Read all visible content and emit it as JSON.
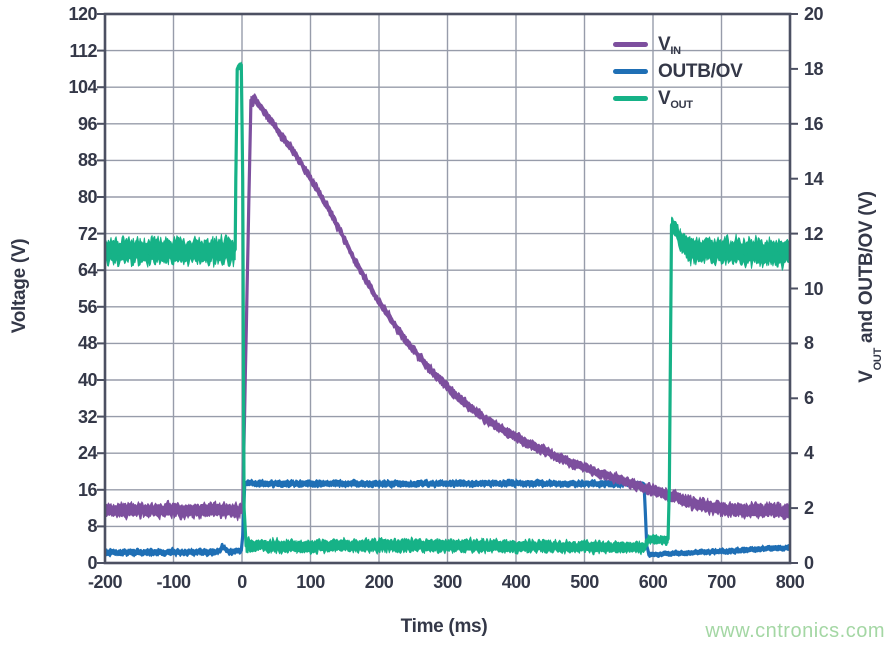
{
  "watermark": {
    "text": "www.cntronics.com",
    "color": "#a4d7a4"
  },
  "chart_data": {
    "type": "line",
    "title": "",
    "xlabel": "Time (ms)",
    "ylabel_left": "Voltage (V)",
    "ylabel_right_parts": {
      "main": "V",
      "sub": "OUT",
      "rest": " and OUTB/OV (V)"
    },
    "x_axis": {
      "min": -200,
      "max": 800,
      "tick_step": 100,
      "ticks": [
        -200,
        -100,
        0,
        100,
        200,
        300,
        400,
        500,
        600,
        700,
        800
      ]
    },
    "y_left": {
      "min": 0,
      "max": 120,
      "tick_step": 8,
      "ticks": [
        0,
        8,
        16,
        24,
        32,
        40,
        48,
        56,
        64,
        72,
        80,
        88,
        96,
        104,
        112,
        120
      ]
    },
    "y_right": {
      "min": 0,
      "max": 20,
      "tick_step": 2,
      "ticks": [
        0,
        2,
        4,
        6,
        8,
        10,
        12,
        14,
        16,
        18,
        20
      ]
    },
    "grid": {
      "on": true,
      "color": "#979caa",
      "border_color": "#4c5062"
    },
    "legend_position": "top-right-inside",
    "legend": [
      {
        "id": "v-in",
        "label_main": "V",
        "label_sub": "IN",
        "color": "#7d4f9e"
      },
      {
        "id": "outb-ov",
        "label_main": "OUTB/OV",
        "label_sub": "",
        "color": "#1f6fb5"
      },
      {
        "id": "v-out",
        "label_main": "V",
        "label_sub": "OUT",
        "color": "#16b287"
      }
    ],
    "series": [
      {
        "id": "OUTB_OV",
        "name": "OUTB/OV",
        "axis": "right",
        "color": "#1f6fb5",
        "points_tvn": [
          [
            -200,
            0.38,
            0.17
          ],
          [
            -35,
            0.4,
            0.17
          ],
          [
            -28,
            0.58,
            0.17
          ],
          [
            -20,
            0.42,
            0.15
          ],
          [
            -1,
            0.45,
            0.15
          ],
          [
            1,
            1.0,
            0.2
          ],
          [
            4,
            2.9,
            0.16
          ],
          [
            200,
            2.88,
            0.16
          ],
          [
            400,
            2.9,
            0.16
          ],
          [
            587,
            2.88,
            0.16
          ],
          [
            591,
            0.6,
            0.14
          ],
          [
            594,
            0.3,
            0.12
          ],
          [
            640,
            0.36,
            0.12
          ],
          [
            700,
            0.42,
            0.13
          ],
          [
            760,
            0.52,
            0.14
          ],
          [
            800,
            0.55,
            0.14
          ]
        ]
      },
      {
        "id": "V_IN",
        "name": "V_IN",
        "axis": "left",
        "color": "#7d4f9e",
        "points_tvn": [
          [
            -200,
            11.5,
            2.0
          ],
          [
            -3,
            11.5,
            2.0
          ],
          [
            1,
            12,
            1.2
          ],
          [
            13,
            101,
            1.4
          ],
          [
            18,
            101.5,
            1.4
          ],
          [
            40,
            97,
            1.4
          ],
          [
            75,
            90,
            1.4
          ],
          [
            105,
            83,
            1.4
          ],
          [
            135,
            75,
            1.4
          ],
          [
            165,
            66,
            1.4
          ],
          [
            200,
            57,
            1.4
          ],
          [
            240,
            48.5,
            1.4
          ],
          [
            280,
            41.5,
            1.4
          ],
          [
            320,
            35.5,
            1.4
          ],
          [
            360,
            31,
            1.4
          ],
          [
            400,
            27.5,
            1.4
          ],
          [
            440,
            24.5,
            1.4
          ],
          [
            480,
            22,
            1.4
          ],
          [
            520,
            19.8,
            1.4
          ],
          [
            560,
            17.8,
            1.4
          ],
          [
            590,
            16.3,
            1.5
          ],
          [
            620,
            15,
            1.6
          ],
          [
            650,
            13.5,
            1.8
          ],
          [
            680,
            12.3,
            1.9
          ],
          [
            710,
            11.7,
            2.0
          ],
          [
            800,
            11.4,
            2.0
          ]
        ]
      },
      {
        "id": "V_OUT",
        "name": "V_OUT",
        "axis": "right",
        "color": "#16b287",
        "points_tvn": [
          [
            -200,
            11.35,
            0.6
          ],
          [
            -10,
            11.35,
            0.6
          ],
          [
            -9,
            14,
            0.3
          ],
          [
            -7,
            18.0,
            0.18
          ],
          [
            -1,
            18.15,
            0.18
          ],
          [
            1,
            14,
            0.3
          ],
          [
            3,
            2,
            0.3
          ],
          [
            6,
            0.65,
            0.3
          ],
          [
            80,
            0.6,
            0.3
          ],
          [
            200,
            0.65,
            0.3
          ],
          [
            350,
            0.62,
            0.3
          ],
          [
            500,
            0.6,
            0.28
          ],
          [
            588,
            0.55,
            0.25
          ],
          [
            593,
            0.85,
            0.22
          ],
          [
            622,
            0.85,
            0.22
          ],
          [
            624,
            3,
            0.3
          ],
          [
            627,
            12.3,
            0.35
          ],
          [
            633,
            12.15,
            0.4
          ],
          [
            640,
            11.7,
            0.55
          ],
          [
            655,
            11.4,
            0.6
          ],
          [
            800,
            11.3,
            0.6
          ]
        ]
      }
    ],
    "draw_order": [
      "OUTB_OV",
      "V_IN",
      "V_OUT"
    ]
  }
}
